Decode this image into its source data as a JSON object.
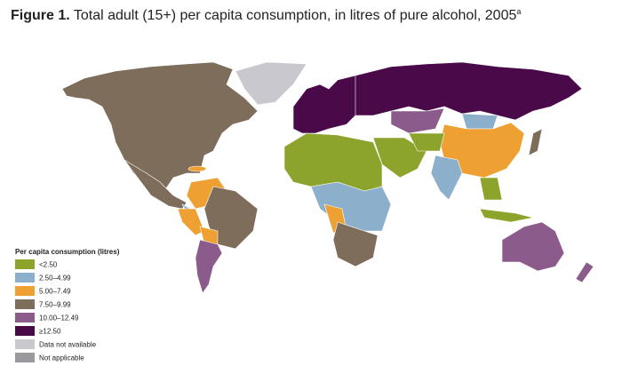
{
  "title": {
    "label": "Figure 1.",
    "text": "Total adult (15+) per capita consumption, in litres of pure alcohol, 2005",
    "superscript": "a"
  },
  "legend": {
    "title": "Per capita consumption (litres)",
    "items": [
      {
        "label": "<2.50",
        "color": "#8da42c"
      },
      {
        "label": "2.50–4.99",
        "color": "#8cb0cc"
      },
      {
        "label": "5.00–7.49",
        "color": "#eea132"
      },
      {
        "label": "7.50–9.99",
        "color": "#7d6d5a"
      },
      {
        "label": "10.00–12.49",
        "color": "#8b5b8b"
      },
      {
        "label": "≥12.50",
        "color": "#4a0a4a"
      },
      {
        "label": "Data not available",
        "color": "#c8c8ce"
      },
      {
        "label": "Not applicable",
        "color": "#9a9a9e"
      }
    ]
  }
}
